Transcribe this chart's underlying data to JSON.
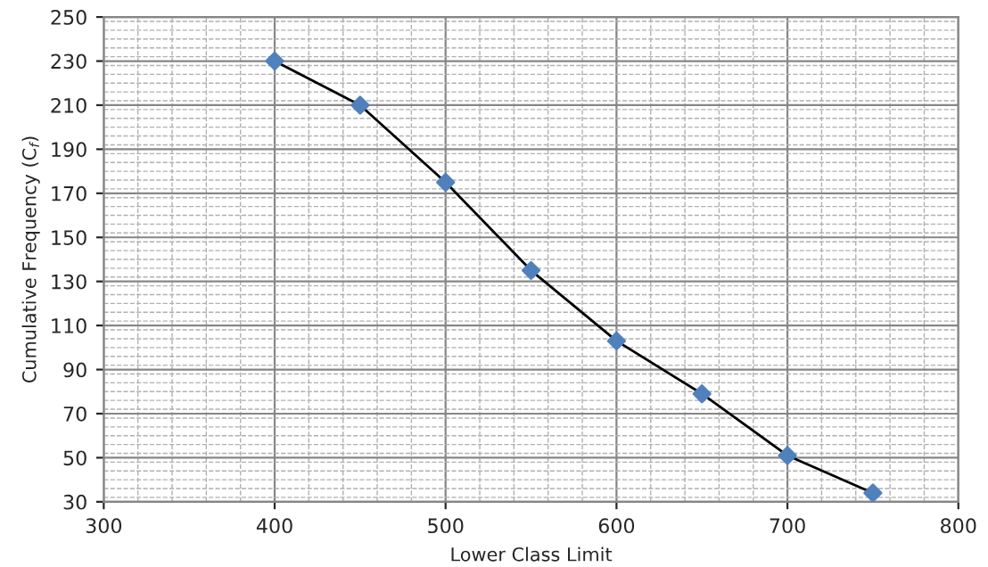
{
  "chart_data": {
    "type": "line",
    "xlabel": "Lower Class Limit",
    "ylabel": "Cumulative Frequency (C$_{f}$)",
    "x": [
      400,
      450,
      500,
      550,
      600,
      650,
      700,
      750
    ],
    "series": [
      {
        "color": "#4f81bd",
        "values": [
          230,
          210,
          175,
          135,
          103,
          79,
          51,
          34
        ]
      }
    ],
    "xlim": [
      300,
      800
    ],
    "xticks": [
      300,
      400,
      500,
      600,
      700,
      800
    ],
    "ylim": [
      30,
      250
    ],
    "yticks": [
      30,
      50,
      70,
      90,
      110,
      130,
      150,
      170,
      190,
      210,
      230,
      250
    ],
    "grid": true,
    "marker": "diamond",
    "line_style": "solid"
  }
}
